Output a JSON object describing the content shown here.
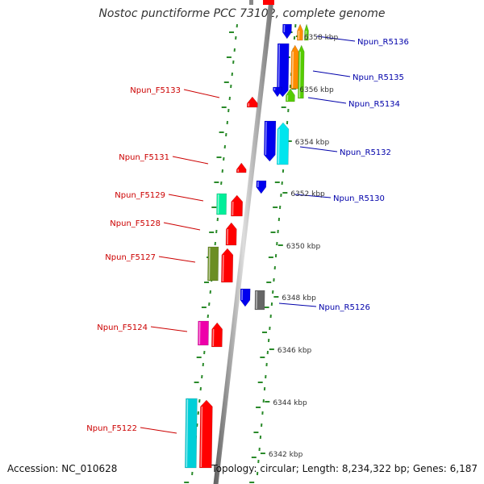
{
  "title": "Nostoc punctiforme PCC 73102, complete genome",
  "footer": {
    "accession": "Accession: NC_010628",
    "summary": "Topology: circular; Length: 8,234,322 bp; Genes: 6,187"
  },
  "colors": {
    "forward_label": "#cc0000",
    "reverse_label": "#0000aa",
    "backbone": "#888888",
    "tick": "#2a8a2a"
  },
  "scale_labels": [
    "6358 kbp",
    "6356 kbp",
    "6354 kbp",
    "6352 kbp",
    "6350 kbp",
    "6348 kbp",
    "6346 kbp",
    "6344 kbp",
    "6342 kbp"
  ],
  "forward_genes": [
    "Npun_F5133",
    "Npun_F5131",
    "Npun_F5129",
    "Npun_F5128",
    "Npun_F5127",
    "Npun_F5124",
    "Npun_F5122"
  ],
  "reverse_genes": [
    "Npun_R5136",
    "Npun_R5135",
    "Npun_R5134",
    "Npun_R5132",
    "Npun_R5130",
    "Npun_R5126"
  ]
}
